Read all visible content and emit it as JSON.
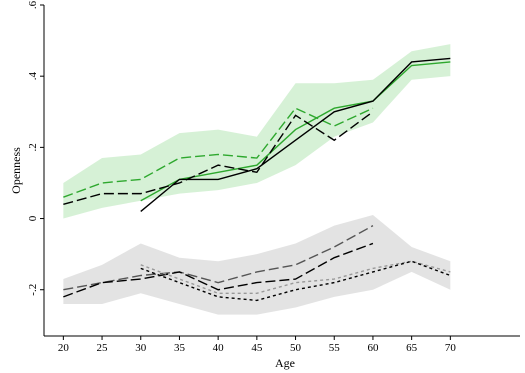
{
  "chart_data": {
    "type": "line",
    "title": "",
    "xlabel": "Age",
    "ylabel": "Openness",
    "xlim": [
      17.5,
      79
    ],
    "ylim": [
      -0.33,
      0.6
    ],
    "x_ticks": [
      "20",
      "25",
      "30",
      "35",
      "40",
      "45",
      "50",
      "55",
      "60",
      "65",
      "70"
    ],
    "y_ticks": [
      "-.2",
      "0",
      ".2",
      ".4",
      ".6"
    ],
    "y_tick_values": [
      -0.2,
      0,
      0.2,
      0.4,
      0.6
    ],
    "x_tick_values": [
      20,
      25,
      30,
      35,
      40,
      45,
      50,
      55,
      60,
      65,
      70
    ],
    "grid": false,
    "legend": "none",
    "colors": {
      "green": "#2ea82e",
      "black": "#000000",
      "gray_dark": "#555555",
      "gray_light": "#999999",
      "band_green": "#c8ecc8",
      "band_gray": "#d9d9d9"
    },
    "bands": [
      {
        "color": "band_green",
        "x": [
          20,
          25,
          30,
          35,
          40,
          45,
          50,
          55,
          60,
          65,
          70
        ],
        "lower": [
          0.0,
          0.03,
          0.05,
          0.07,
          0.08,
          0.1,
          0.15,
          0.23,
          0.27,
          0.39,
          0.4
        ],
        "upper": [
          0.1,
          0.17,
          0.18,
          0.24,
          0.25,
          0.23,
          0.38,
          0.38,
          0.39,
          0.47,
          0.49
        ]
      },
      {
        "color": "band_gray",
        "x": [
          20,
          25,
          30,
          35,
          40,
          45,
          50,
          55,
          60,
          65,
          70
        ],
        "lower": [
          -0.24,
          -0.24,
          -0.21,
          -0.24,
          -0.27,
          -0.27,
          -0.25,
          -0.22,
          -0.2,
          -0.15,
          -0.2
        ],
        "upper": [
          -0.17,
          -0.13,
          -0.07,
          -0.11,
          -0.12,
          -0.1,
          -0.07,
          -0.02,
          0.01,
          -0.08,
          -0.12
        ]
      }
    ],
    "series": [
      {
        "color": "green",
        "dash": "10,4",
        "x": [
          20,
          25,
          30,
          35,
          40,
          45,
          50,
          55,
          60
        ],
        "values": [
          0.06,
          0.1,
          0.11,
          0.17,
          0.18,
          0.17,
          0.31,
          0.26,
          0.31
        ]
      },
      {
        "color": "green",
        "dash": "",
        "x": [
          30,
          35,
          40,
          45,
          50,
          55,
          60,
          65,
          70
        ],
        "values": [
          0.05,
          0.11,
          0.13,
          0.15,
          0.25,
          0.31,
          0.33,
          0.43,
          0.44
        ]
      },
      {
        "color": "black",
        "dash": "10,4",
        "x": [
          20,
          25,
          30,
          35,
          40,
          45,
          50,
          55,
          60
        ],
        "values": [
          0.04,
          0.07,
          0.07,
          0.1,
          0.15,
          0.13,
          0.29,
          0.22,
          0.3
        ]
      },
      {
        "color": "black",
        "dash": "",
        "x": [
          30,
          35,
          40,
          45,
          50,
          55,
          60,
          65,
          70
        ],
        "values": [
          0.02,
          0.11,
          0.11,
          0.14,
          0.22,
          0.3,
          0.33,
          0.44,
          0.45
        ]
      },
      {
        "color": "gray_dark",
        "dash": "10,4",
        "x": [
          20,
          25,
          30,
          35,
          40,
          45,
          50,
          55,
          60
        ],
        "values": [
          -0.2,
          -0.18,
          -0.16,
          -0.15,
          -0.18,
          -0.15,
          -0.13,
          -0.08,
          -0.02
        ]
      },
      {
        "color": "black",
        "dash": "10,4",
        "x": [
          20,
          25,
          30,
          35,
          40,
          45,
          50,
          55,
          60
        ],
        "values": [
          -0.22,
          -0.18,
          -0.17,
          -0.15,
          -0.2,
          -0.18,
          -0.17,
          -0.11,
          -0.07
        ]
      },
      {
        "color": "gray_light",
        "dash": "3,3",
        "x": [
          30,
          35,
          40,
          45,
          50,
          55,
          60,
          65,
          70
        ],
        "values": [
          -0.13,
          -0.17,
          -0.21,
          -0.21,
          -0.18,
          -0.17,
          -0.14,
          -0.12,
          -0.15
        ]
      },
      {
        "color": "black",
        "dash": "3,3",
        "x": [
          30,
          35,
          40,
          45,
          50,
          55,
          60,
          65,
          70
        ],
        "values": [
          -0.14,
          -0.18,
          -0.22,
          -0.23,
          -0.2,
          -0.18,
          -0.15,
          -0.12,
          -0.16
        ]
      }
    ]
  }
}
